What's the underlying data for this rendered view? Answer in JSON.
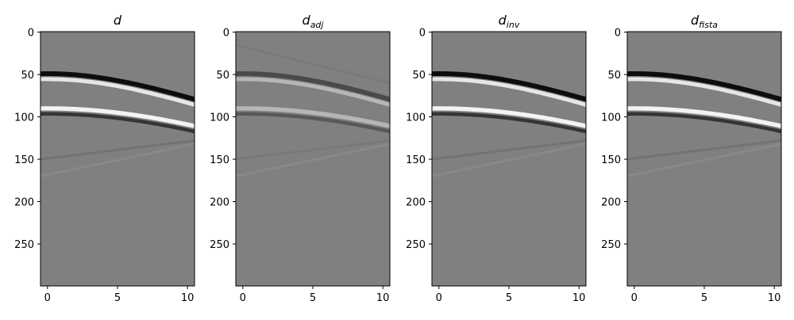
{
  "chart_data": [
    {
      "type": "image",
      "title": "d",
      "title_sub": null,
      "xlim": [
        -0.5,
        10.5
      ],
      "ylim": [
        299.5,
        -0.5
      ],
      "xticks": [
        0,
        5,
        10
      ],
      "yticks": [
        0,
        50,
        100,
        150,
        200,
        250
      ],
      "cmap": "gray"
    },
    {
      "type": "image",
      "title": "d",
      "title_sub": "adj",
      "xlim": [
        -0.5,
        10.5
      ],
      "ylim": [
        299.5,
        -0.5
      ],
      "xticks": [
        0,
        5,
        10
      ],
      "yticks": [
        0,
        50,
        100,
        150,
        200,
        250
      ],
      "cmap": "gray"
    },
    {
      "type": "image",
      "title": "d",
      "title_sub": "inv",
      "xlim": [
        -0.5,
        10.5
      ],
      "ylim": [
        299.5,
        -0.5
      ],
      "xticks": [
        0,
        5,
        10
      ],
      "yticks": [
        0,
        50,
        100,
        150,
        200,
        250
      ],
      "cmap": "gray"
    },
    {
      "type": "image",
      "title": "d",
      "title_sub": "fista",
      "xlim": [
        -0.5,
        10.5
      ],
      "ylim": [
        299.5,
        -0.5
      ],
      "xticks": [
        0,
        5,
        10
      ],
      "yticks": [
        0,
        50,
        100,
        150,
        200,
        250
      ],
      "cmap": "gray"
    }
  ]
}
